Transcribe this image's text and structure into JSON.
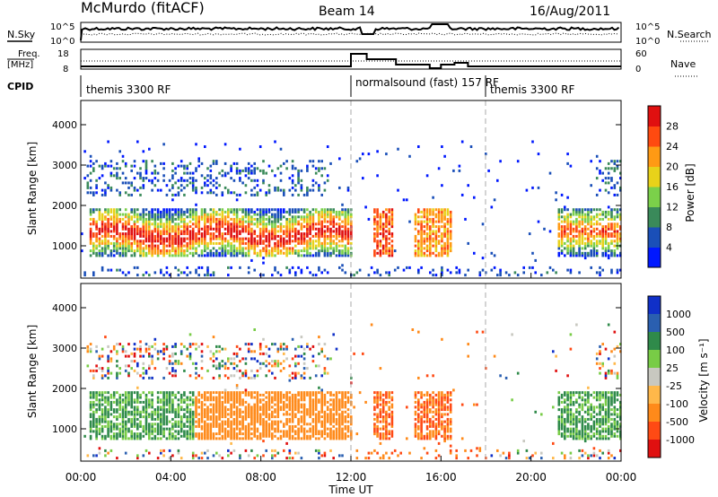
{
  "header": {
    "station": "McMurdo (fitACF)",
    "beam": "Beam 14",
    "date": "16/Aug/2011"
  },
  "top_panels": {
    "nsky": {
      "label": "N.Sky",
      "tick_top": "10^5",
      "tick_bottom": "10^0",
      "right_label": "N.Search",
      "right_tick_top": "10^5",
      "right_tick_bottom": "10^0"
    },
    "freq": {
      "label_line1": "Freq.",
      "label_line2": "[MHz]",
      "tick_top": "18",
      "tick_bottom": "8",
      "right_label": "Nave",
      "right_tick_top": "60",
      "right_tick_bottom": "0"
    },
    "cpid": {
      "label": "CPID",
      "segments": [
        {
          "name": "themis 3300 RF",
          "start_h": 0,
          "end_h": 12
        },
        {
          "name": "normalsound (fast) 157 RF",
          "start_h": 12,
          "end_h": 18
        },
        {
          "name": "themis 3300 RF",
          "start_h": 18,
          "end_h": 24
        }
      ]
    }
  },
  "chart_data": [
    {
      "type": "heatmap",
      "name": "power",
      "ylabel": "Slant Range [km]",
      "yticks": [
        1000,
        2000,
        3000,
        4000
      ],
      "ylim": [
        200,
        4600
      ],
      "colorbar_label": "Power [dB]",
      "colorbar_ticks": [
        "4",
        "8",
        "12",
        "16",
        "20",
        "24",
        "28"
      ],
      "colors": [
        "#0018ff",
        "#1a4fb8",
        "#3a8a5a",
        "#7bd04a",
        "#e8d21a",
        "#ff9a14",
        "#ff4a10",
        "#e01010"
      ]
    },
    {
      "type": "heatmap",
      "name": "velocity",
      "ylabel": "Slant Range [km]",
      "yticks": [
        1000,
        2000,
        3000,
        4000
      ],
      "ylim": [
        200,
        4600
      ],
      "colorbar_label": "Velocity [m s⁻¹]",
      "colorbar_ticks": [
        "1000",
        "500",
        "100",
        "25",
        "-25",
        "-100",
        "-500",
        "-1000"
      ],
      "colors": [
        "#1030c8",
        "#2a5fb0",
        "#2f8a4a",
        "#78cc46",
        "#c8c8c0",
        "#ffb84a",
        "#ff8a1a",
        "#ff4a14",
        "#e01010"
      ]
    }
  ],
  "xaxis": {
    "ticks": [
      "00:00",
      "04:00",
      "08:00",
      "12:00",
      "16:00",
      "20:00",
      "00:00"
    ],
    "label": "Time UT"
  }
}
